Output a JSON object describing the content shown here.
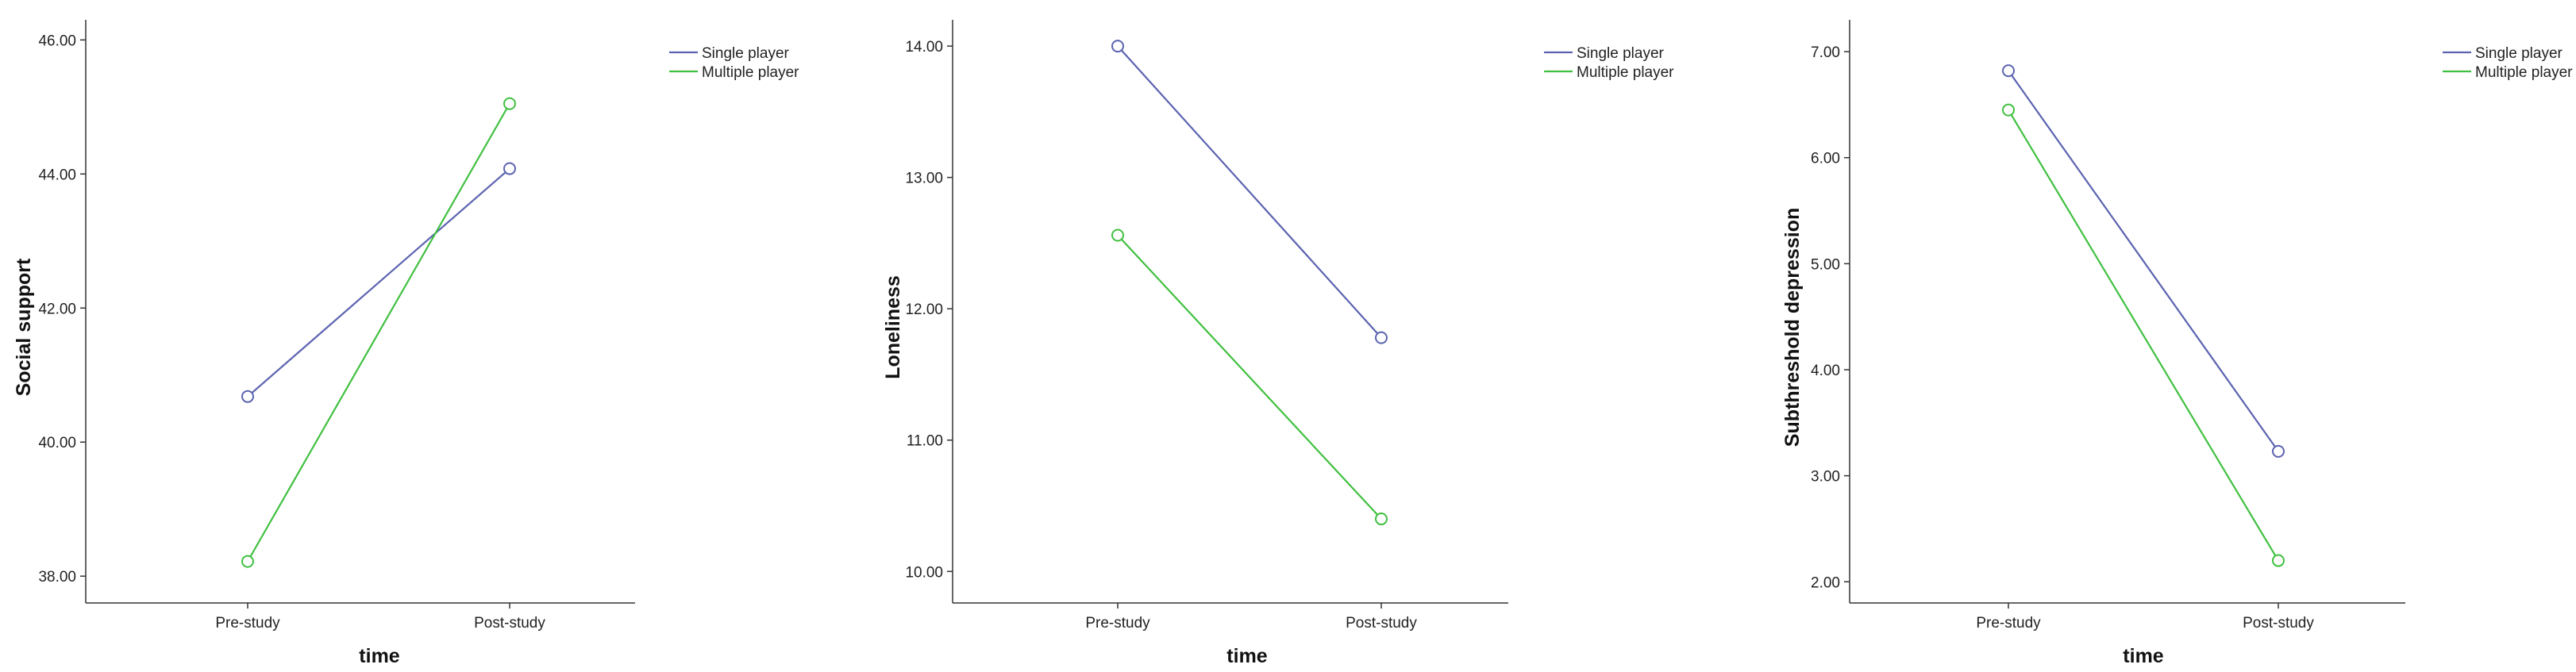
{
  "chart_data": [
    {
      "type": "line",
      "title": "",
      "xlabel": "time",
      "ylabel": "Social support",
      "categories": [
        "Pre-study",
        "Post-study"
      ],
      "ylim": [
        37.6,
        46.3
      ],
      "yticks": [
        "38.00",
        "40.00",
        "42.00",
        "44.00",
        "46.00"
      ],
      "ytick_values": [
        38,
        40,
        42,
        44,
        46
      ],
      "legend_position": "top-right",
      "grid": false,
      "series": [
        {
          "name": "Single player",
          "color": "#5B63B0",
          "values": [
            40.68,
            44.08
          ]
        },
        {
          "name": "Multiple player",
          "color": "#40C040",
          "values": [
            38.22,
            45.05
          ]
        }
      ]
    },
    {
      "type": "line",
      "title": "",
      "xlabel": "time",
      "ylabel": "Loneliness",
      "categories": [
        "Pre-study",
        "Post-study"
      ],
      "ylim": [
        9.76,
        14.2
      ],
      "yticks": [
        "10.00",
        "11.00",
        "12.00",
        "13.00",
        "14.00"
      ],
      "ytick_values": [
        10,
        11,
        12,
        13,
        14
      ],
      "legend_position": "top-right",
      "grid": false,
      "series": [
        {
          "name": "Single player",
          "color": "#5B63B0",
          "values": [
            14.0,
            11.78
          ]
        },
        {
          "name": "Multiple player",
          "color": "#40C040",
          "values": [
            12.56,
            10.4
          ]
        }
      ]
    },
    {
      "type": "line",
      "title": "",
      "xlabel": "time",
      "ylabel": "Subthreshold depression",
      "categories": [
        "Pre-study",
        "Post-study"
      ],
      "ylim": [
        1.8,
        7.3
      ],
      "yticks": [
        "2.00",
        "3.00",
        "4.00",
        "5.00",
        "6.00",
        "7.00"
      ],
      "ytick_values": [
        2,
        3,
        4,
        5,
        6,
        7
      ],
      "legend_position": "top-right",
      "grid": false,
      "series": [
        {
          "name": "Single player",
          "color": "#5B63B0",
          "values": [
            6.82,
            3.23
          ]
        },
        {
          "name": "Multiple player",
          "color": "#40C040",
          "values": [
            6.45,
            2.2
          ]
        }
      ]
    }
  ]
}
